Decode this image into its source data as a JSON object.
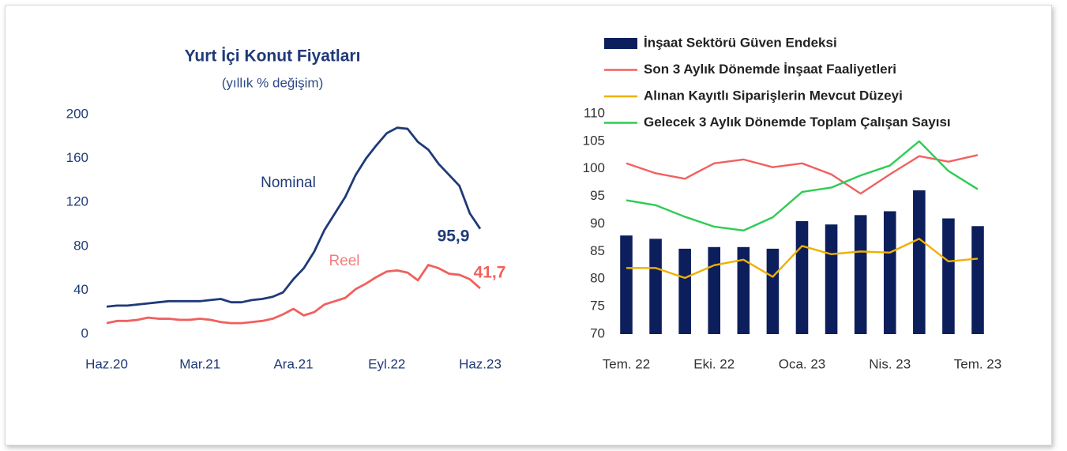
{
  "chart_data": [
    {
      "type": "line",
      "title": "Yurt İçi Konut Fiyatları",
      "subtitle": "(yıllık % değişim)",
      "categories": [
        "Haz.20",
        null,
        null,
        null,
        null,
        null,
        null,
        null,
        null,
        "Mar.21",
        null,
        null,
        null,
        null,
        null,
        null,
        null,
        null,
        "Ara.21",
        null,
        null,
        null,
        null,
        null,
        null,
        null,
        null,
        "Eyl.22",
        null,
        null,
        null,
        null,
        null,
        null,
        null,
        null,
        "Haz.23"
      ],
      "ylim": [
        0,
        200
      ],
      "yticks": [
        0,
        40,
        80,
        120,
        160,
        200
      ],
      "series": [
        {
          "name": "Nominal",
          "color": "#1f3a78",
          "values": [
            25,
            26,
            26,
            27,
            28,
            29,
            30,
            30,
            30,
            30,
            31,
            32,
            29,
            29,
            31,
            32,
            34,
            38,
            50,
            60,
            75,
            95,
            110,
            125,
            145,
            160,
            172,
            183,
            188,
            187,
            175,
            168,
            155,
            145,
            135,
            110,
            95.9
          ],
          "value_labels": [
            null,
            null,
            null,
            null,
            null,
            null,
            null,
            null,
            null,
            null,
            null,
            null,
            null,
            null,
            null,
            null,
            null,
            null,
            null,
            null,
            null,
            null,
            null,
            null,
            null,
            null,
            null,
            null,
            null,
            null,
            null,
            null,
            null,
            null,
            null,
            null,
            "95,9"
          ]
        },
        {
          "name": "Reel",
          "color": "#f0605e",
          "values": [
            10,
            12,
            12,
            13,
            15,
            14,
            14,
            13,
            13,
            14,
            13,
            11,
            10,
            10,
            11,
            12,
            14,
            18,
            23,
            17,
            20,
            27,
            30,
            33,
            41,
            46,
            52,
            57,
            58,
            56,
            49,
            63,
            60,
            55,
            54,
            50,
            41.7
          ],
          "value_labels": [
            null,
            null,
            null,
            null,
            null,
            null,
            null,
            null,
            null,
            null,
            null,
            null,
            null,
            null,
            null,
            null,
            null,
            null,
            null,
            null,
            null,
            null,
            null,
            null,
            null,
            null,
            null,
            null,
            null,
            null,
            null,
            null,
            null,
            null,
            null,
            null,
            "41,7"
          ]
        }
      ]
    },
    {
      "type": "bar",
      "categories": [
        "Tem. 22",
        null,
        null,
        "Eki. 22",
        null,
        null,
        "Oca. 23",
        null,
        null,
        "Nis. 23",
        null,
        null,
        "Tem. 23"
      ],
      "ylim": [
        70,
        110
      ],
      "yticks": [
        70,
        75,
        80,
        85,
        90,
        95,
        100,
        105,
        110
      ],
      "series": [
        {
          "name": "İnşaat Sektörü Güven Endeksi",
          "type": "bar",
          "color": "#0c1f5c",
          "values": [
            87.9,
            87.3,
            85.5,
            85.8,
            85.8,
            85.5,
            90.5,
            89.9,
            91.6,
            92.3,
            96.1,
            91,
            89.6
          ]
        },
        {
          "name": "Son 3 Aylık Dönemde İnşaat Faaliyetleri",
          "type": "line",
          "color": "#f26060",
          "values": [
            101,
            99.2,
            98.2,
            101,
            101.7,
            100.3,
            101,
            99,
            95.5,
            99,
            102.3,
            101.3,
            102.5
          ]
        },
        {
          "name": "Alınan Kayıtlı Siparişlerin Mevcut Düzeyi",
          "type": "line",
          "color": "#eeb000",
          "values": [
            82,
            82,
            80.2,
            82.5,
            83.5,
            80.4,
            86,
            84.5,
            85,
            84.8,
            87.3,
            83.2,
            83.7
          ]
        },
        {
          "name": "Gelecek 3 Aylık Dönemde Toplam Çalışan Sayısı",
          "type": "line",
          "color": "#2ecc55",
          "values": [
            94.3,
            93.4,
            91.3,
            89.5,
            88.8,
            91.2,
            95.8,
            96.6,
            98.8,
            100.6,
            105,
            99.6,
            96.3
          ]
        }
      ]
    }
  ]
}
